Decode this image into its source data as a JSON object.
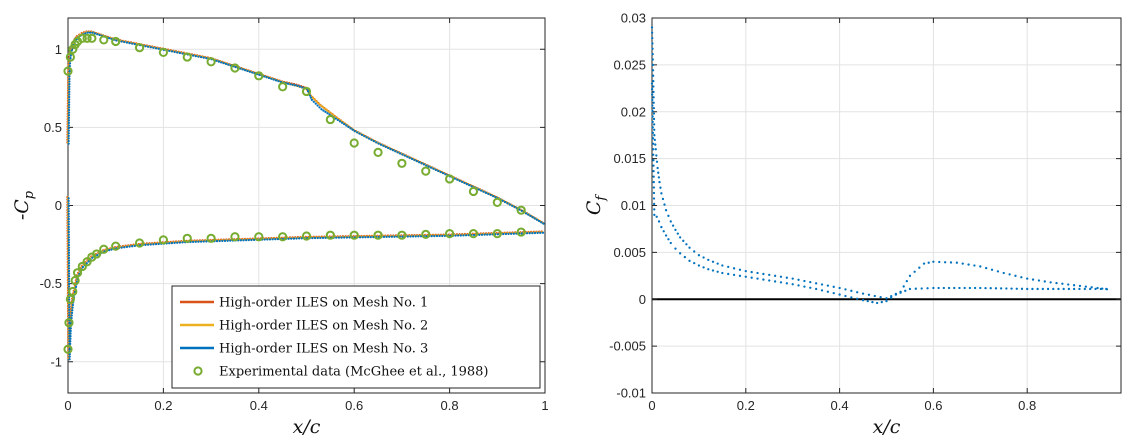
{
  "chart_data": [
    {
      "type": "line",
      "xlabel": "x/c",
      "ylabel": "-Cp",
      "ylabel_base": "-C",
      "ylabel_sub": "p",
      "xlim": [
        0,
        1
      ],
      "ylim": [
        -1.2,
        1.2
      ],
      "xticks": [
        "0",
        "0.2",
        "0.4",
        "0.6",
        "0.8",
        "1"
      ],
      "yticks": [
        "-1",
        "-0.5",
        "0",
        "0.5",
        "1"
      ],
      "grid": true,
      "legend_position": "bottom-right",
      "series": [
        {
          "name": "High-order ILES on Mesh No. 1",
          "color": "#d95319",
          "style": "dotted",
          "upper": {
            "x": [
              0,
              0.002,
              0.005,
              0.01,
              0.015,
              0.02,
              0.03,
              0.04,
              0.05,
              0.06,
              0.08,
              0.1,
              0.15,
              0.2,
              0.25,
              0.3,
              0.35,
              0.4,
              0.45,
              0.48,
              0.5,
              0.51,
              0.53,
              0.56,
              0.6,
              0.65,
              0.7,
              0.75,
              0.8,
              0.85,
              0.9,
              0.95,
              1.0
            ],
            "y": [
              0.4,
              0.88,
              0.98,
              1.03,
              1.06,
              1.08,
              1.1,
              1.11,
              1.11,
              1.1,
              1.08,
              1.06,
              1.03,
              1.0,
              0.97,
              0.94,
              0.89,
              0.84,
              0.79,
              0.77,
              0.75,
              0.7,
              0.64,
              0.57,
              0.48,
              0.4,
              0.33,
              0.26,
              0.19,
              0.12,
              0.05,
              -0.03,
              -0.12
            ]
          },
          "lower": {
            "x": [
              0,
              0.002,
              0.005,
              0.01,
              0.02,
              0.03,
              0.05,
              0.075,
              0.1,
              0.15,
              0.2,
              0.25,
              0.3,
              0.4,
              0.5,
              0.6,
              0.7,
              0.8,
              0.9,
              0.95,
              1.0
            ],
            "y": [
              0.05,
              -0.98,
              -0.75,
              -0.6,
              -0.45,
              -0.39,
              -0.33,
              -0.29,
              -0.27,
              -0.25,
              -0.24,
              -0.23,
              -0.225,
              -0.215,
              -0.205,
              -0.2,
              -0.195,
              -0.19,
              -0.18,
              -0.175,
              -0.17
            ]
          }
        },
        {
          "name": "High-order ILES on Mesh No. 2",
          "color": "#edb120",
          "style": "dotted",
          "upper": {
            "x": [
              0,
              0.002,
              0.005,
              0.01,
              0.015,
              0.02,
              0.03,
              0.04,
              0.05,
              0.06,
              0.08,
              0.1,
              0.15,
              0.2,
              0.25,
              0.3,
              0.35,
              0.4,
              0.45,
              0.48,
              0.5,
              0.51,
              0.53,
              0.56,
              0.6,
              0.65,
              0.7,
              0.75,
              0.8,
              0.85,
              0.9,
              0.95,
              1.0
            ],
            "y": [
              0.4,
              0.88,
              0.98,
              1.03,
              1.06,
              1.08,
              1.1,
              1.11,
              1.11,
              1.1,
              1.08,
              1.06,
              1.03,
              1.0,
              0.97,
              0.94,
              0.89,
              0.84,
              0.79,
              0.765,
              0.745,
              0.7,
              0.64,
              0.57,
              0.48,
              0.4,
              0.33,
              0.26,
              0.19,
              0.12,
              0.05,
              -0.03,
              -0.12
            ]
          },
          "lower": {
            "x": [
              0,
              0.002,
              0.005,
              0.01,
              0.02,
              0.03,
              0.05,
              0.075,
              0.1,
              0.15,
              0.2,
              0.25,
              0.3,
              0.4,
              0.5,
              0.6,
              0.7,
              0.8,
              0.9,
              0.95,
              1.0
            ],
            "y": [
              0.05,
              -0.98,
              -0.75,
              -0.6,
              -0.45,
              -0.39,
              -0.33,
              -0.29,
              -0.27,
              -0.25,
              -0.24,
              -0.23,
              -0.225,
              -0.215,
              -0.205,
              -0.2,
              -0.195,
              -0.19,
              -0.18,
              -0.175,
              -0.17
            ]
          }
        },
        {
          "name": "High-order ILES on Mesh No. 3",
          "color": "#0072bd",
          "style": "dotted",
          "upper": {
            "x": [
              0,
              0.002,
              0.005,
              0.01,
              0.015,
              0.02,
              0.03,
              0.04,
              0.05,
              0.06,
              0.08,
              0.1,
              0.15,
              0.2,
              0.25,
              0.3,
              0.35,
              0.4,
              0.45,
              0.48,
              0.5,
              0.51,
              0.53,
              0.56,
              0.6,
              0.65,
              0.7,
              0.75,
              0.8,
              0.85,
              0.9,
              0.95,
              1.0
            ],
            "y": [
              0.4,
              0.88,
              0.98,
              1.03,
              1.06,
              1.08,
              1.1,
              1.11,
              1.11,
              1.1,
              1.08,
              1.06,
              1.03,
              1.0,
              0.97,
              0.94,
              0.89,
              0.84,
              0.79,
              0.77,
              0.75,
              0.68,
              0.62,
              0.56,
              0.48,
              0.4,
              0.33,
              0.26,
              0.19,
              0.12,
              0.05,
              -0.03,
              -0.12
            ]
          },
          "lower": {
            "x": [
              0,
              0.002,
              0.005,
              0.01,
              0.02,
              0.03,
              0.05,
              0.075,
              0.1,
              0.15,
              0.2,
              0.25,
              0.3,
              0.4,
              0.5,
              0.6,
              0.7,
              0.8,
              0.9,
              0.95,
              1.0
            ],
            "y": [
              0.05,
              -0.98,
              -0.75,
              -0.6,
              -0.45,
              -0.39,
              -0.33,
              -0.29,
              -0.27,
              -0.25,
              -0.24,
              -0.23,
              -0.225,
              -0.215,
              -0.205,
              -0.2,
              -0.195,
              -0.19,
              -0.18,
              -0.175,
              -0.17
            ]
          }
        },
        {
          "name": "Experimental data (McGhee et al., 1988)",
          "color": "#77ac30",
          "style": "circles",
          "x": [
            0.0,
            0.005,
            0.01,
            0.015,
            0.02,
            0.03,
            0.04,
            0.05,
            0.075,
            0.1,
            0.15,
            0.2,
            0.25,
            0.3,
            0.35,
            0.4,
            0.45,
            0.5,
            0.55,
            0.6,
            0.65,
            0.7,
            0.75,
            0.8,
            0.85,
            0.9,
            0.95,
            0.0,
            0.002,
            0.005,
            0.01,
            0.015,
            0.02,
            0.03,
            0.04,
            0.05,
            0.06,
            0.075,
            0.1,
            0.15,
            0.2,
            0.25,
            0.3,
            0.35,
            0.4,
            0.45,
            0.5,
            0.55,
            0.6,
            0.65,
            0.7,
            0.75,
            0.8,
            0.85,
            0.9,
            0.95
          ],
          "y": [
            0.86,
            0.95,
            1.0,
            1.03,
            1.05,
            1.07,
            1.07,
            1.07,
            1.06,
            1.05,
            1.01,
            0.98,
            0.95,
            0.92,
            0.88,
            0.83,
            0.76,
            0.73,
            0.55,
            0.4,
            0.34,
            0.27,
            0.22,
            0.17,
            0.09,
            0.02,
            -0.03,
            -0.92,
            -0.75,
            -0.6,
            -0.55,
            -0.48,
            -0.43,
            -0.39,
            -0.36,
            -0.33,
            -0.31,
            -0.28,
            -0.26,
            -0.24,
            -0.22,
            -0.21,
            -0.21,
            -0.2,
            -0.2,
            -0.2,
            -0.195,
            -0.19,
            -0.19,
            -0.19,
            -0.19,
            -0.185,
            -0.18,
            -0.18,
            -0.18,
            -0.17
          ]
        }
      ],
      "legend": [
        "High-order ILES on Mesh No. 1",
        "High-order ILES on Mesh No. 2",
        "High-order ILES on Mesh No. 3",
        "Experimental data (McGhee et al., 1988)"
      ]
    },
    {
      "type": "scatter",
      "xlabel": "x/c",
      "ylabel": "Cf",
      "ylabel_base": "C",
      "ylabel_sub": "f",
      "xlim": [
        0,
        1
      ],
      "ylim": [
        -0.01,
        0.03
      ],
      "xticks": [
        "0",
        "0.2",
        "0.4",
        "0.6",
        "0.8"
      ],
      "yticks": [
        "-0.01",
        "-0.005",
        "0",
        "0.005",
        "0.01",
        "0.015",
        "0.02",
        "0.025",
        "0.03"
      ],
      "grid": true,
      "zero_line": true,
      "series": [
        {
          "name": "",
          "color": "#0072bd",
          "style": "dotted",
          "branches": [
            {
              "x": [
                0.0,
                0.002,
                0.005,
                0.008,
                0.012,
                0.016,
                0.02,
                0.03,
                0.04,
                0.05,
                0.06,
                0.08,
                0.1,
                0.12,
                0.15,
                0.2,
                0.25,
                0.3,
                0.35,
                0.4,
                0.45,
                0.5,
                0.53,
                0.55,
                0.58,
                0.6,
                0.65,
                0.7,
                0.75,
                0.8,
                0.85,
                0.9,
                0.95,
                0.98
              ],
              "y": [
                0.029,
                0.025,
                0.0175,
                0.016,
                0.014,
                0.0125,
                0.0113,
                0.0095,
                0.0083,
                0.0074,
                0.0066,
                0.0055,
                0.0047,
                0.0042,
                0.0036,
                0.003,
                0.0026,
                0.0022,
                0.0017,
                0.0012,
                0.0006,
                0.0001,
                0.0008,
                0.0025,
                0.0038,
                0.004,
                0.0039,
                0.0035,
                0.0028,
                0.0022,
                0.0018,
                0.0015,
                0.0012,
                0.001
              ]
            },
            {
              "x": [
                0.0,
                0.005,
                0.01,
                0.015,
                0.02,
                0.03,
                0.04,
                0.05,
                0.06,
                0.08,
                0.1,
                0.12,
                0.15,
                0.2,
                0.25,
                0.3,
                0.35,
                0.4,
                0.45,
                0.48,
                0.5,
                0.52,
                0.55,
                0.6,
                0.7,
                0.8,
                0.9,
                0.98
              ],
              "y": [
                0.023,
                0.009,
                0.0088,
                0.0083,
                0.0077,
                0.0068,
                0.006,
                0.0054,
                0.0049,
                0.0041,
                0.0036,
                0.0032,
                0.0028,
                0.0024,
                0.002,
                0.0016,
                0.0011,
                0.0005,
                -0.0001,
                -0.0004,
                -0.0002,
                0.0005,
                0.0011,
                0.0012,
                0.0012,
                0.0011,
                0.0011,
                0.0011
              ]
            }
          ]
        }
      ]
    }
  ]
}
